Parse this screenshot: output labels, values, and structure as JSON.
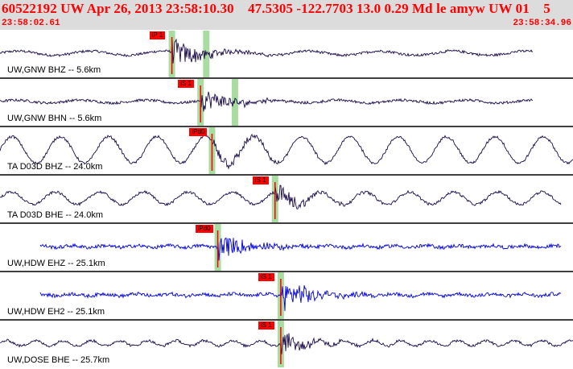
{
  "header": {
    "event_info": "60522192 UW Apr 26, 2013 23:58:10.30    47.5305 -122.7703 13.0 0.29 Md le amyw UW 01    5",
    "start_time": "23:58:02.61",
    "end_time": "23:58:34.96"
  },
  "colors": {
    "header_background": "#dcdcdc",
    "header_text": "#ff0000",
    "trace_dark": "#1a0a4a",
    "trace_blue": "#0000dd",
    "pick_marker": "#ff0000",
    "pick_window": "#a8dca0"
  },
  "channels": [
    {
      "label": "UW,GNW BHZ -- 5.6km",
      "color": "dark",
      "pick": "iP 1",
      "amplitude": 0.12,
      "period": 90,
      "event_gain": 0.8,
      "pick_time": 0.3,
      "duration": 0.93
    },
    {
      "label": "UW,GNW BHN -- 5.6km",
      "color": "dark",
      "pick": "iS 1",
      "amplitude": 0.08,
      "period": 80,
      "event_gain": 0.7,
      "pick_time": 0.35,
      "duration": 0.93
    },
    {
      "label": "TA D03D BHZ -- 24.0km",
      "color": "dark",
      "pick": "iPd0",
      "amplitude": 0.75,
      "period": 60,
      "event_gain": 0.5,
      "pick_time": 0.37,
      "duration": 1.0
    },
    {
      "label": "TA D03D BHE -- 24.0km",
      "color": "dark",
      "pick": "iS 1",
      "amplitude": 0.35,
      "period": 55,
      "event_gain": 0.6,
      "pick_time": 0.48,
      "duration": 0.98
    },
    {
      "label": "UW,HDW EHZ -- 25.1km",
      "color": "blue",
      "pick": "iPd0",
      "amplitude": 0.05,
      "period": 40,
      "event_gain": 0.8,
      "pick_time": 0.38,
      "duration": 0.98
    },
    {
      "label": "UW,HDW EH2 -- 25.1km",
      "color": "blue",
      "pick": "iS 1",
      "amplitude": 0.06,
      "period": 40,
      "event_gain": 0.9,
      "pick_time": 0.49,
      "duration": 0.98
    },
    {
      "label": "UW,DOSE BHE -- 25.7km",
      "color": "dark",
      "pick": "iS 1",
      "amplitude": 0.15,
      "period": 35,
      "event_gain": 0.6,
      "pick_time": 0.49,
      "duration": 1.0
    }
  ]
}
